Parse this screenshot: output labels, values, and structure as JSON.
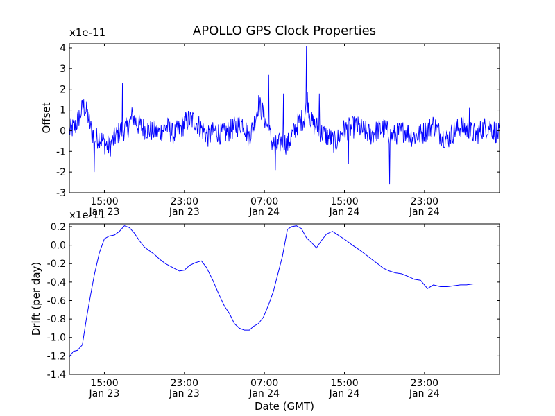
{
  "chart_data": [
    {
      "type": "line",
      "title": "APOLLO GPS Clock Properties",
      "ylabel": "Offset",
      "xlabel": "",
      "scale_label": "x1e-11",
      "ylim": [
        -3,
        4.2
      ],
      "xlim": [
        0,
        43.0
      ],
      "yticks": [
        "-3",
        "-2",
        "-1",
        "0",
        "1",
        "2",
        "3",
        "4"
      ],
      "ytick_values": [
        -3,
        -2,
        -1,
        0,
        1,
        2,
        3,
        4
      ],
      "xticks": [
        {
          "time": "15:00",
          "date": "Jan 23",
          "hours": 3.5
        },
        {
          "time": "23:00",
          "date": "Jan 23",
          "hours": 11.5
        },
        {
          "time": "07:00",
          "date": "Jan 24",
          "hours": 19.5
        },
        {
          "time": "15:00",
          "date": "Jan 24",
          "hours": 27.5
        },
        {
          "time": "23:00",
          "date": "Jan 24",
          "hours": 35.5
        }
      ],
      "series": [
        {
          "color": "#0000ff",
          "style": "noisy",
          "x": [
            0.0,
            0.6,
            1.0,
            1.4,
            1.8,
            2.2,
            2.6,
            3.0,
            3.5,
            4.0,
            4.6,
            5.1,
            5.8,
            6.3,
            6.8,
            7.5,
            8.2,
            9.0,
            9.7,
            10.4,
            11.1,
            11.8,
            12.5,
            13.2,
            13.9,
            14.6,
            15.3,
            16.0,
            16.7,
            17.4,
            17.9,
            18.4,
            18.9,
            19.4,
            19.8,
            20.3,
            20.8,
            21.3,
            21.8,
            22.3,
            22.8,
            23.2,
            23.5,
            23.8,
            24.2,
            24.7,
            25.2,
            25.9,
            26.6,
            27.3,
            28.0,
            28.7,
            29.4,
            30.1,
            30.8,
            31.5,
            32.2,
            32.9,
            33.6,
            34.3,
            35.0,
            35.7,
            36.4,
            37.1,
            37.8,
            38.5,
            39.2,
            39.9,
            40.6,
            41.3,
            42.0,
            43.0
          ],
          "values": [
            0.0,
            0.2,
            0.7,
            1.2,
            0.8,
            0.0,
            -0.4,
            -0.3,
            -0.6,
            -0.8,
            -0.3,
            0.0,
            0.1,
            0.7,
            0.3,
            0.1,
            0.0,
            -0.1,
            0.2,
            -0.2,
            0.1,
            0.5,
            0.5,
            0.1,
            -0.3,
            0.0,
            -0.2,
            0.0,
            0.2,
            0.4,
            -0.3,
            0.2,
            1.3,
            0.8,
            0.2,
            -0.6,
            -0.8,
            -0.4,
            -0.7,
            -0.2,
            0.3,
            0.5,
            0.6,
            1.5,
            0.4,
            0.2,
            -0.1,
            -0.3,
            -0.6,
            0.0,
            0.1,
            0.2,
            0.0,
            -0.2,
            0.0,
            0.1,
            -0.3,
            -0.1,
            0.0,
            -0.3,
            -0.2,
            0.0,
            0.3,
            -0.2,
            -0.4,
            0.0,
            0.2,
            0.0,
            -0.2,
            0.1,
            0.2,
            -0.2
          ]
        }
      ],
      "spikes": [
        {
          "hours": 5.3,
          "value": 2.3
        },
        {
          "hours": 2.5,
          "value": -2.0
        },
        {
          "hours": 19.9,
          "value": 2.7
        },
        {
          "hours": 20.6,
          "value": -1.9
        },
        {
          "hours": 21.4,
          "value": 1.8
        },
        {
          "hours": 23.7,
          "value": 4.1
        },
        {
          "hours": 25.0,
          "value": 1.8
        },
        {
          "hours": 32.0,
          "value": -2.6
        },
        {
          "hours": 27.9,
          "value": -1.6
        },
        {
          "hours": 40.0,
          "value": 1.1
        }
      ]
    },
    {
      "type": "line",
      "title": "",
      "ylabel": "Drift (per day)",
      "xlabel": "Date (GMT)",
      "scale_label": "x1e-11",
      "ylim": [
        -1.4,
        0.23
      ],
      "xlim": [
        0,
        43.0
      ],
      "yticks": [
        "-1.4",
        "-1.2",
        "-1.0",
        "-0.8",
        "-0.6",
        "-0.4",
        "-0.2",
        "0.0",
        "0.2"
      ],
      "ytick_values": [
        -1.4,
        -1.2,
        -1.0,
        -0.8,
        -0.6,
        -0.4,
        -0.2,
        0.0,
        0.2
      ],
      "xticks": [
        {
          "time": "15:00",
          "date": "Jan 23",
          "hours": 3.5
        },
        {
          "time": "23:00",
          "date": "Jan 23",
          "hours": 11.5
        },
        {
          "time": "07:00",
          "date": "Jan 24",
          "hours": 19.5
        },
        {
          "time": "15:00",
          "date": "Jan 24",
          "hours": 27.5
        },
        {
          "time": "23:00",
          "date": "Jan 24",
          "hours": 35.5
        }
      ],
      "series": [
        {
          "color": "#0000ff",
          "style": "smooth",
          "x": [
            0.0,
            0.4,
            0.8,
            1.3,
            1.7,
            2.1,
            2.5,
            3.0,
            3.5,
            4.0,
            4.5,
            5.0,
            5.5,
            6.0,
            6.5,
            7.0,
            7.5,
            8.0,
            8.5,
            9.0,
            9.6,
            10.3,
            11.0,
            11.5,
            12.0,
            12.6,
            13.2,
            13.7,
            14.3,
            14.9,
            15.5,
            16.0,
            16.5,
            17.0,
            17.5,
            18.0,
            18.4,
            18.9,
            19.4,
            19.9,
            20.4,
            20.8,
            21.3,
            21.8,
            22.2,
            22.7,
            23.2,
            23.7,
            24.2,
            24.7,
            25.2,
            25.7,
            26.3,
            27.0,
            27.7,
            28.3,
            29.0,
            29.6,
            30.2,
            30.8,
            31.4,
            32.0,
            32.6,
            33.2,
            33.9,
            34.5,
            35.1,
            35.8,
            36.4,
            37.1,
            37.8,
            38.4,
            39.1,
            39.7,
            40.4,
            41.0,
            41.7,
            42.3,
            43.0
          ],
          "values": [
            -1.21,
            -1.15,
            -1.14,
            -1.08,
            -0.8,
            -0.55,
            -0.32,
            -0.08,
            0.07,
            0.1,
            0.11,
            0.15,
            0.21,
            0.19,
            0.13,
            0.05,
            -0.02,
            -0.06,
            -0.1,
            -0.15,
            -0.2,
            -0.24,
            -0.28,
            -0.27,
            -0.22,
            -0.19,
            -0.17,
            -0.24,
            -0.37,
            -0.52,
            -0.66,
            -0.74,
            -0.85,
            -0.9,
            -0.92,
            -0.92,
            -0.88,
            -0.85,
            -0.78,
            -0.65,
            -0.5,
            -0.33,
            -0.12,
            0.17,
            0.2,
            0.21,
            0.18,
            0.08,
            0.03,
            -0.03,
            0.05,
            0.12,
            0.15,
            0.1,
            0.05,
            0.0,
            -0.05,
            -0.1,
            -0.15,
            -0.2,
            -0.25,
            -0.28,
            -0.3,
            -0.31,
            -0.34,
            -0.37,
            -0.38,
            -0.47,
            -0.43,
            -0.45,
            -0.45,
            -0.44,
            -0.43,
            -0.43,
            -0.42,
            -0.42,
            -0.42,
            -0.42,
            -0.42
          ]
        }
      ]
    }
  ]
}
